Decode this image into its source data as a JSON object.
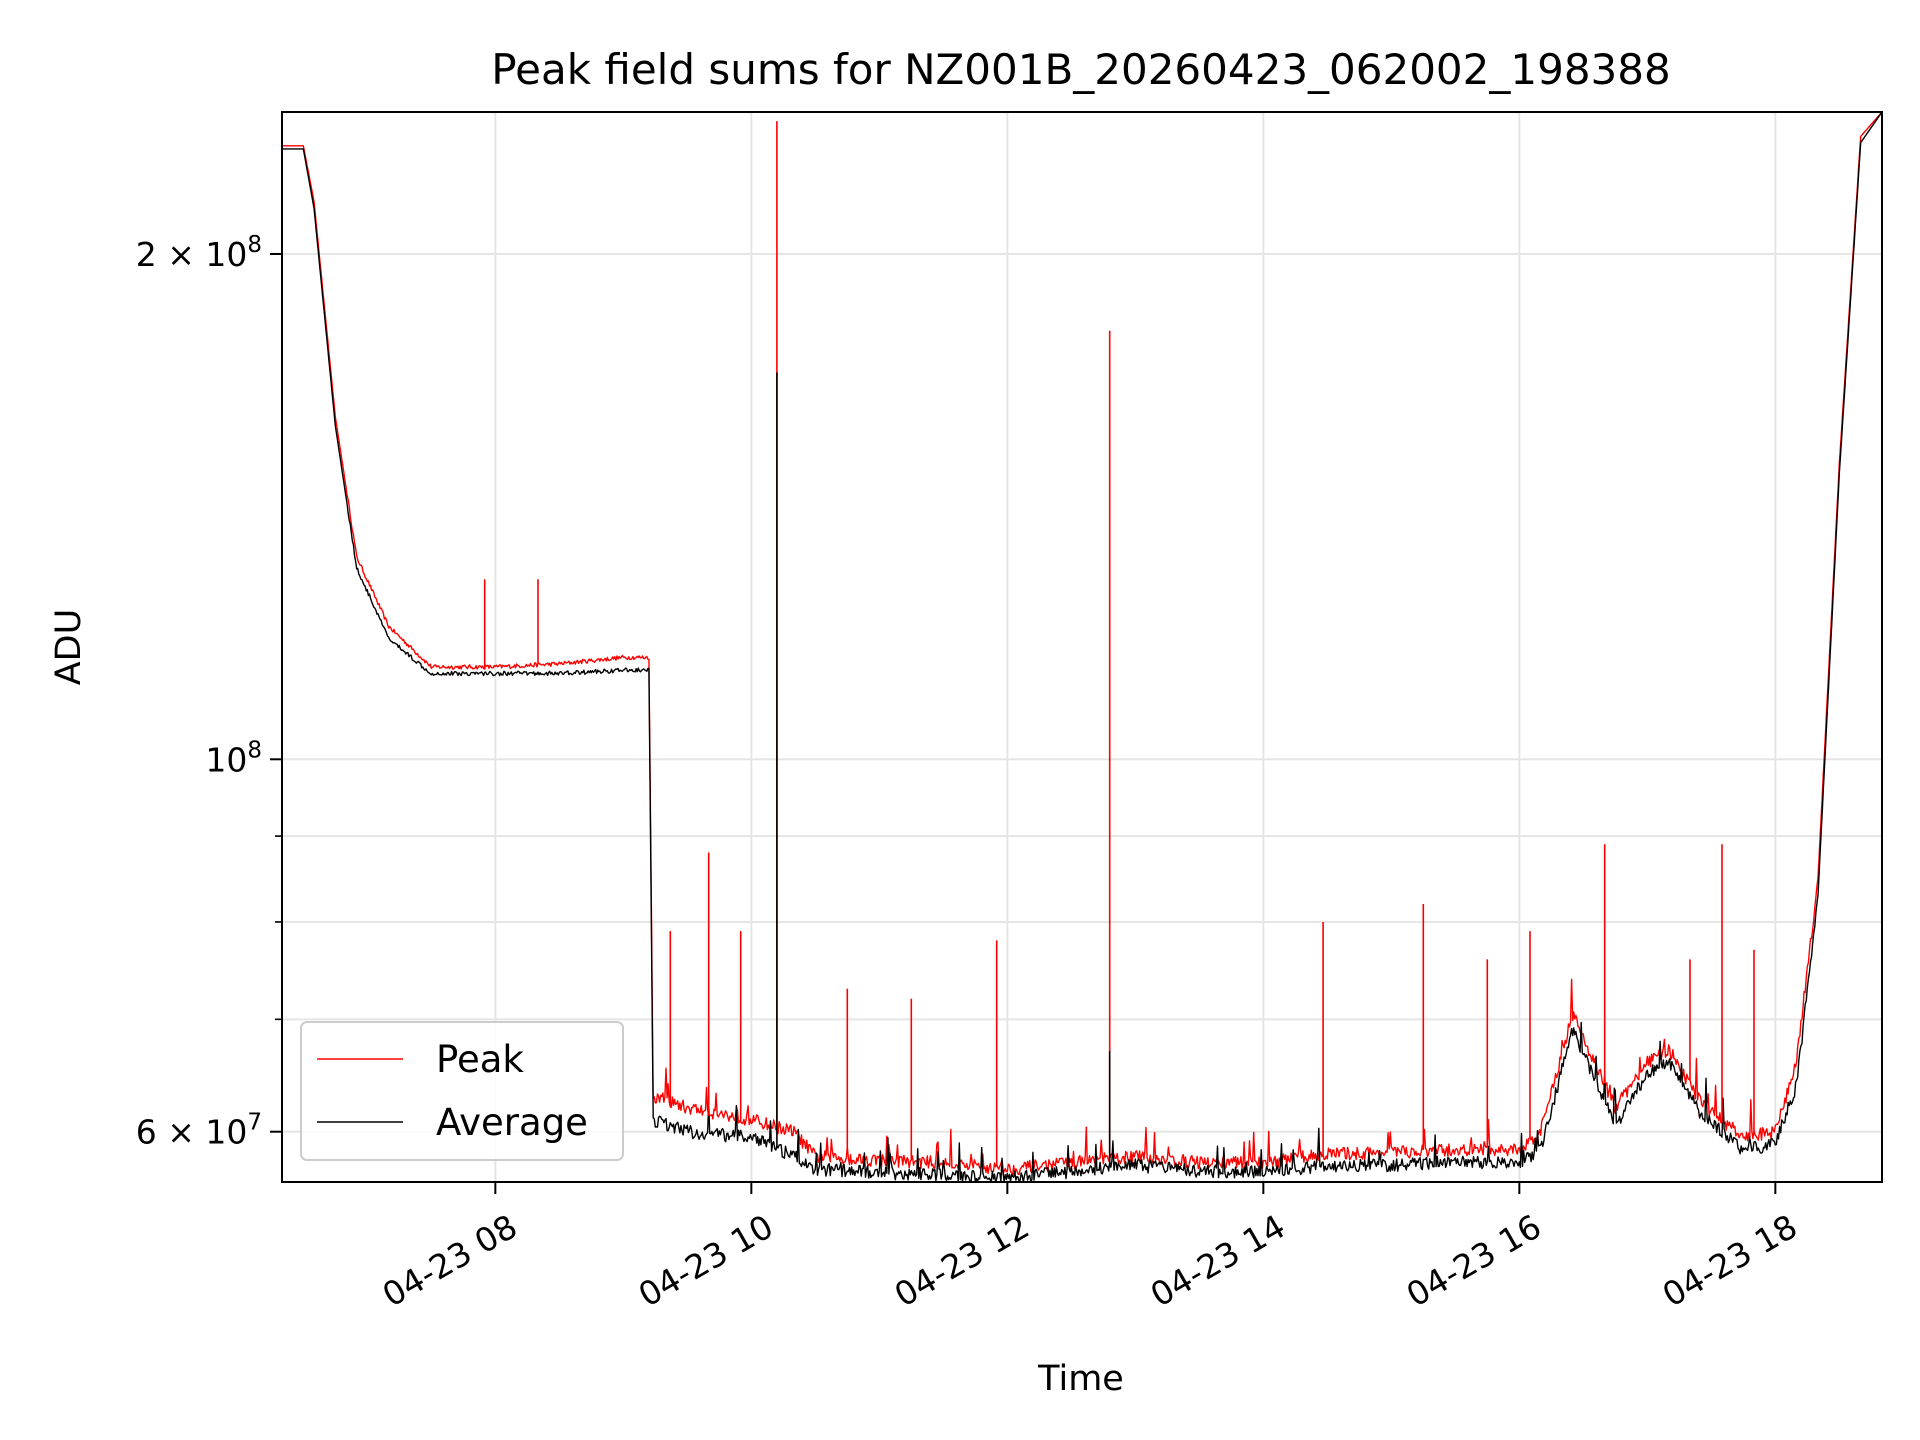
{
  "chart_data": {
    "type": "line",
    "title": "Peak field sums for NZ001B_20260423_062002_198388",
    "xlabel": "Time",
    "ylabel": "ADU",
    "y_scale": "log",
    "grid": true,
    "legend_position": "lower-left",
    "xlim": [
      "2026-04-23 06:20",
      "2026-04-23 18:50"
    ],
    "ylim": [
      56000000,
      243000000
    ],
    "x_ticks": [
      {
        "label": "04-23 08",
        "value": "2026-04-23 08:00"
      },
      {
        "label": "04-23 10",
        "value": "2026-04-23 10:00"
      },
      {
        "label": "04-23 12",
        "value": "2026-04-23 12:00"
      },
      {
        "label": "04-23 14",
        "value": "2026-04-23 14:00"
      },
      {
        "label": "04-23 16",
        "value": "2026-04-23 16:00"
      },
      {
        "label": "04-23 18",
        "value": "2026-04-23 18:00"
      }
    ],
    "y_ticks": [
      {
        "label": "2 × 10^8",
        "base": "2 × 10",
        "exp": "8",
        "value": 200000000
      },
      {
        "label": "10^8",
        "base": "10",
        "exp": "8",
        "value": 100000000
      },
      {
        "label": "6 × 10^7",
        "base": "6 × 10",
        "exp": "7",
        "value": 60000000
      }
    ],
    "y_minor_ticks": [
      70000000,
      80000000,
      90000000
    ],
    "series": [
      {
        "name": "Peak",
        "color": "#ff0000",
        "points": [
          [
            "2026-04-23 06:20",
            232000000
          ],
          [
            "2026-04-23 06:30",
            232000000
          ],
          [
            "2026-04-23 06:35",
            215000000
          ],
          [
            "2026-04-23 06:45",
            160000000
          ],
          [
            "2026-04-23 06:55",
            132000000
          ],
          [
            "2026-04-23 07:10",
            120000000
          ],
          [
            "2026-04-23 07:30",
            113500000
          ],
          [
            "2026-04-23 08:00",
            113500000
          ],
          [
            "2026-04-23 08:30",
            114000000
          ],
          [
            "2026-04-23 09:00",
            115000000
          ],
          [
            "2026-04-23 09:12",
            115000000
          ],
          [
            "2026-04-23 09:14",
            63000000
          ],
          [
            "2026-04-23 09:30",
            62000000
          ],
          [
            "2026-04-23 10:00",
            61000000
          ],
          [
            "2026-04-23 10:20",
            60000000
          ],
          [
            "2026-04-23 10:30",
            58000000
          ],
          [
            "2026-04-23 11:00",
            57700000
          ],
          [
            "2026-04-23 11:30",
            57500000
          ],
          [
            "2026-04-23 12:00",
            57000000
          ],
          [
            "2026-04-23 12:30",
            57500000
          ],
          [
            "2026-04-23 13:00",
            58000000
          ],
          [
            "2026-04-23 13:30",
            57500000
          ],
          [
            "2026-04-23 14:00",
            57500000
          ],
          [
            "2026-04-23 14:30",
            58200000
          ],
          [
            "2026-04-23 15:00",
            58300000
          ],
          [
            "2026-04-23 15:30",
            58500000
          ],
          [
            "2026-04-23 16:00",
            58500000
          ],
          [
            "2026-04-23 16:10",
            60000000
          ],
          [
            "2026-04-23 16:25",
            70500000
          ],
          [
            "2026-04-23 16:45",
            62000000
          ],
          [
            "2026-04-23 17:00",
            66000000
          ],
          [
            "2026-04-23 17:10",
            67000000
          ],
          [
            "2026-04-23 17:25",
            62500000
          ],
          [
            "2026-04-23 17:45",
            59500000
          ],
          [
            "2026-04-23 18:00",
            60000000
          ],
          [
            "2026-04-23 18:10",
            66000000
          ],
          [
            "2026-04-23 18:20",
            85000000
          ],
          [
            "2026-04-23 18:30",
            150000000
          ],
          [
            "2026-04-23 18:40",
            235000000
          ],
          [
            "2026-04-23 18:50",
            243000000
          ]
        ]
      },
      {
        "name": "Average",
        "color": "#000000",
        "points": [
          [
            "2026-04-23 06:20",
            231000000
          ],
          [
            "2026-04-23 06:30",
            231000000
          ],
          [
            "2026-04-23 06:35",
            213000000
          ],
          [
            "2026-04-23 06:45",
            158000000
          ],
          [
            "2026-04-23 06:55",
            130000000
          ],
          [
            "2026-04-23 07:10",
            118000000
          ],
          [
            "2026-04-23 07:30",
            112500000
          ],
          [
            "2026-04-23 08:00",
            112500000
          ],
          [
            "2026-04-23 08:30",
            112500000
          ],
          [
            "2026-04-23 09:00",
            113000000
          ],
          [
            "2026-04-23 09:12",
            113000000
          ],
          [
            "2026-04-23 09:14",
            61000000
          ],
          [
            "2026-04-23 09:30",
            60000000
          ],
          [
            "2026-04-23 10:00",
            59500000
          ],
          [
            "2026-04-23 10:20",
            58000000
          ],
          [
            "2026-04-23 10:30",
            57000000
          ],
          [
            "2026-04-23 11:00",
            56700000
          ],
          [
            "2026-04-23 11:30",
            56600000
          ],
          [
            "2026-04-23 12:00",
            56300000
          ],
          [
            "2026-04-23 12:30",
            56800000
          ],
          [
            "2026-04-23 13:00",
            57300000
          ],
          [
            "2026-04-23 13:30",
            56800000
          ],
          [
            "2026-04-23 14:00",
            56800000
          ],
          [
            "2026-04-23 14:30",
            57300000
          ],
          [
            "2026-04-23 15:00",
            57300000
          ],
          [
            "2026-04-23 15:30",
            57600000
          ],
          [
            "2026-04-23 16:00",
            57400000
          ],
          [
            "2026-04-23 16:10",
            58500000
          ],
          [
            "2026-04-23 16:25",
            69000000
          ],
          [
            "2026-04-23 16:45",
            60500000
          ],
          [
            "2026-04-23 17:00",
            65000000
          ],
          [
            "2026-04-23 17:10",
            66000000
          ],
          [
            "2026-04-23 17:25",
            61500000
          ],
          [
            "2026-04-23 17:45",
            58500000
          ],
          [
            "2026-04-23 18:00",
            59000000
          ],
          [
            "2026-04-23 18:10",
            64000000
          ],
          [
            "2026-04-23 18:20",
            83000000
          ],
          [
            "2026-04-23 18:30",
            148000000
          ],
          [
            "2026-04-23 18:40",
            233000000
          ],
          [
            "2026-04-23 18:50",
            243000000
          ]
        ]
      }
    ],
    "spikes": [
      {
        "series": "Peak",
        "time": "2026-04-23 07:55",
        "value": 128000000
      },
      {
        "series": "Peak",
        "time": "2026-04-23 08:20",
        "value": 128000000
      },
      {
        "series": "Peak",
        "time": "2026-04-23 09:22",
        "value": 79000000
      },
      {
        "series": "Peak",
        "time": "2026-04-23 09:40",
        "value": 88000000
      },
      {
        "series": "Peak",
        "time": "2026-04-23 09:55",
        "value": 79000000
      },
      {
        "series": "Peak",
        "time": "2026-04-23 10:12",
        "value": 240000000
      },
      {
        "series": "Average",
        "time": "2026-04-23 10:12",
        "value": 170000000
      },
      {
        "series": "Peak",
        "time": "2026-04-23 10:45",
        "value": 73000000
      },
      {
        "series": "Peak",
        "time": "2026-04-23 11:15",
        "value": 72000000
      },
      {
        "series": "Peak",
        "time": "2026-04-23 11:55",
        "value": 78000000
      },
      {
        "series": "Peak",
        "time": "2026-04-23 12:48",
        "value": 180000000
      },
      {
        "series": "Average",
        "time": "2026-04-23 12:48",
        "value": 67000000
      },
      {
        "series": "Peak",
        "time": "2026-04-23 14:28",
        "value": 80000000
      },
      {
        "series": "Peak",
        "time": "2026-04-23 15:15",
        "value": 82000000
      },
      {
        "series": "Peak",
        "time": "2026-04-23 15:45",
        "value": 76000000
      },
      {
        "series": "Peak",
        "time": "2026-04-23 16:05",
        "value": 79000000
      },
      {
        "series": "Peak",
        "time": "2026-04-23 16:40",
        "value": 89000000
      },
      {
        "series": "Peak",
        "time": "2026-04-23 17:20",
        "value": 76000000
      },
      {
        "series": "Peak",
        "time": "2026-04-23 17:35",
        "value": 89000000
      },
      {
        "series": "Peak",
        "time": "2026-04-23 17:50",
        "value": 77000000
      }
    ]
  }
}
